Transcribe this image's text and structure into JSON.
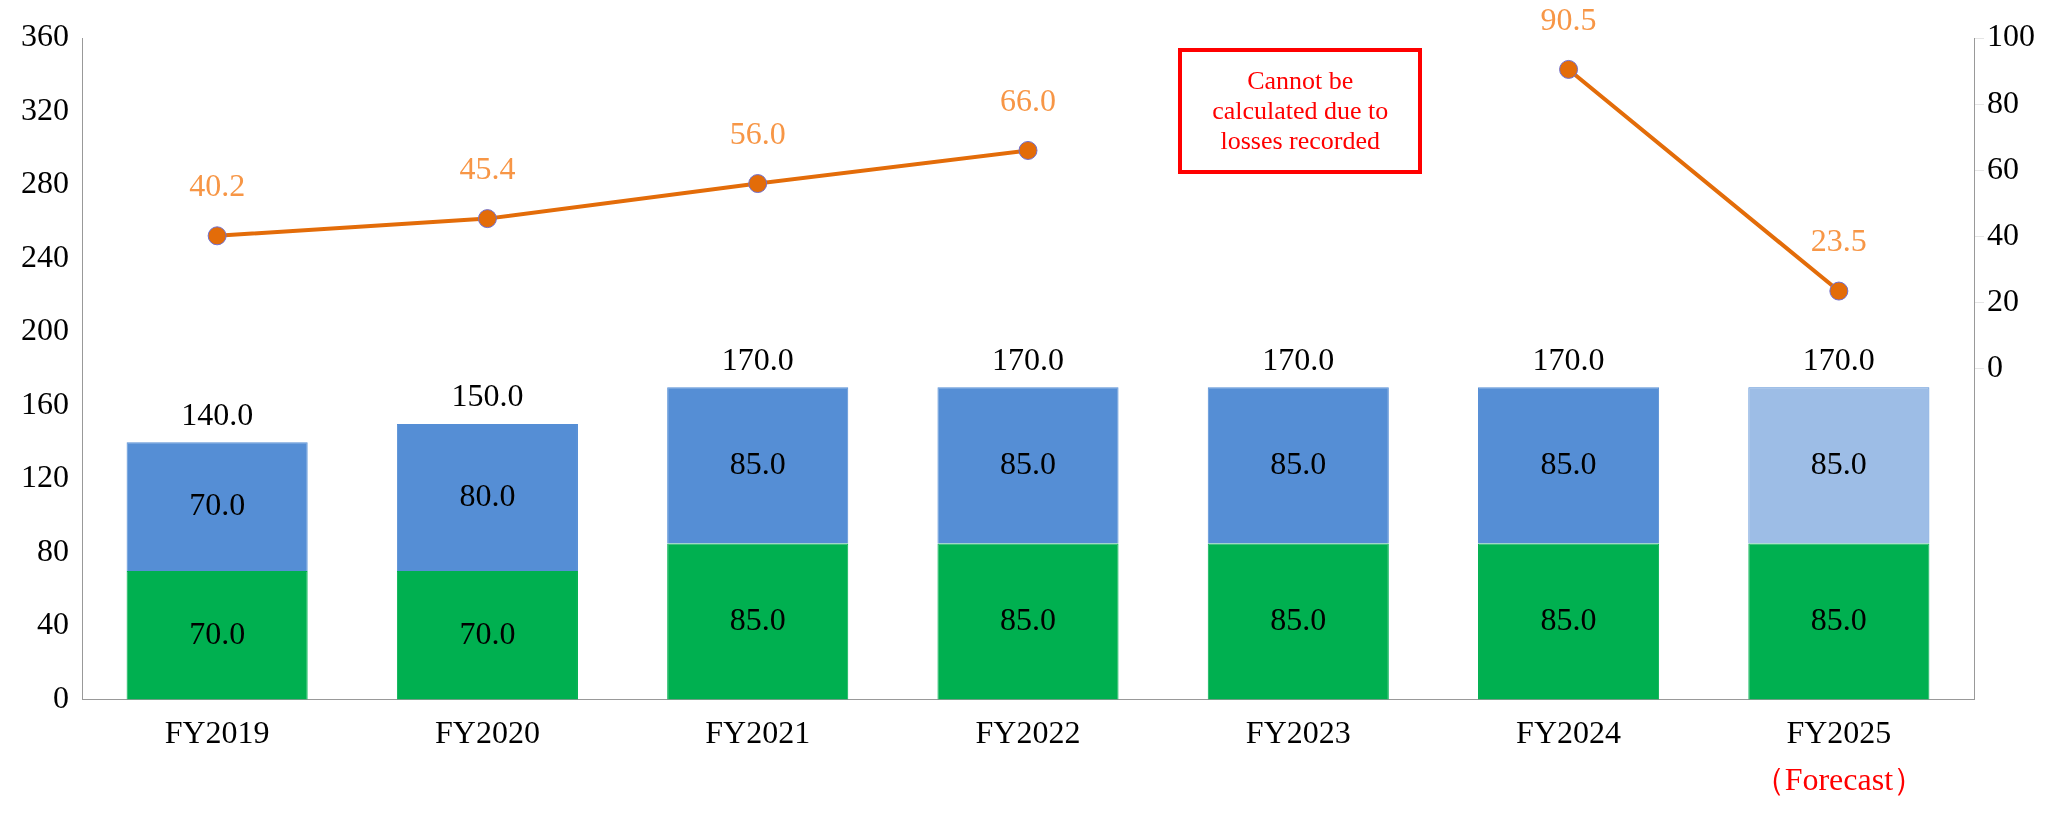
{
  "chart_data": {
    "type": "bar",
    "stacked": true,
    "categories": [
      "FY2019",
      "FY2020",
      "FY2021",
      "FY2022",
      "FY2023",
      "FY2024",
      "FY2025"
    ],
    "series": [
      {
        "color": "#00b050",
        "values": [
          70,
          70,
          85,
          85,
          85,
          85,
          85
        ],
        "value_labels": [
          "70.0",
          "70.0",
          "85.0",
          "85.0",
          "85.0",
          "85.0",
          "85.0"
        ]
      },
      {
        "color": "#558ed5",
        "colors": [
          "#558ed5",
          "#558ed5",
          "#558ed5",
          "#558ed5",
          "#558ed5",
          "#558ed5",
          "#9dbde6"
        ],
        "values": [
          70,
          80,
          85,
          85,
          85,
          85,
          85
        ],
        "value_labels": [
          "70.0",
          "80.0",
          "85.0",
          "85.0",
          "85.0",
          "85.0",
          "85.0"
        ]
      },
      {
        "type": "line",
        "axis": "y2",
        "color": "#e36c09",
        "marker": "circle",
        "values": [
          40.2,
          45.4,
          56,
          66,
          null,
          90.5,
          23.5
        ],
        "value_labels": [
          "40.2",
          "45.4",
          "56.0",
          "66.0",
          null,
          "90.5",
          "23.5"
        ]
      }
    ],
    "totals": [
      "140.0",
      "150.0",
      "170.0",
      "170.0",
      "170.0",
      "170.0",
      "170.0"
    ],
    "ylim": [
      0,
      360
    ],
    "yticks": [
      0,
      40,
      80,
      120,
      160,
      200,
      240,
      280,
      320,
      360
    ],
    "y2lim": [
      -100,
      100
    ],
    "y2ticks": [
      0,
      20,
      40,
      60,
      80,
      100
    ],
    "annotations": [
      "Cannot be calculated due to losses recorded",
      "（Forecast）"
    ]
  }
}
